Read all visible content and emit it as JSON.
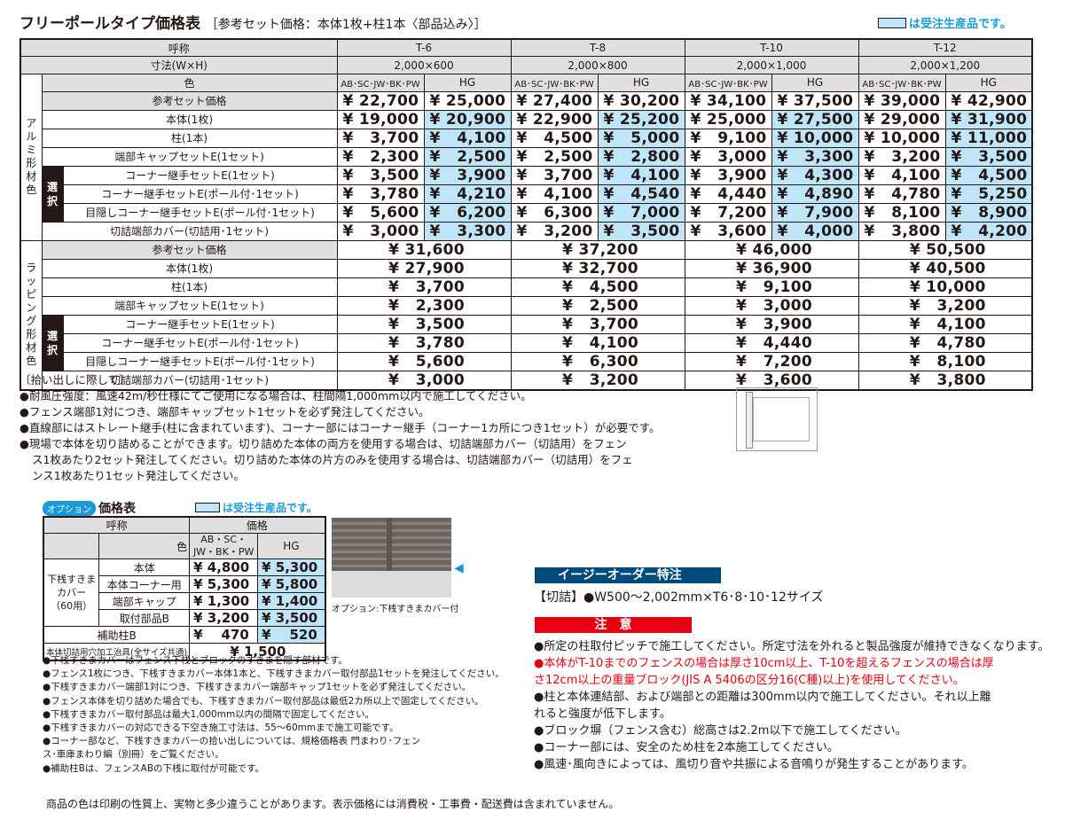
{
  "title": "フリーポールタイプ価格表",
  "subtitle": "［参考セット価格：本体1枚+柱1本〈部品込み〉］",
  "legend": "は受注生産品です。",
  "colors": {
    "made_to_order": "#bfe5f8",
    "header_bg": "#e0e0e0",
    "easy_order": "#004a7c",
    "caution": "#e60012",
    "option_badge": "#1a9ad6"
  },
  "table": {
    "h_name": "呼称",
    "h_size": "寸法(W×H)",
    "h_color": "色",
    "models": [
      "T-6",
      "T-8",
      "T-10",
      "T-12"
    ],
    "sizes": [
      "2,000×600",
      "2,000×800",
      "2,000×1,000",
      "2,000×1,200"
    ],
    "color_cols": [
      "AB･SC･JW･BK･PW",
      "HG"
    ],
    "group_alu": "アルミ形材色",
    "group_wrap": "ラッピング形材色",
    "select": "選択",
    "items": [
      "参考セット価格",
      "本体(1枚)",
      "柱(1本)",
      "端部キャップセットE(1セット)",
      "コーナー継手セットE(1セット)",
      "コーナー継手セットE(ポール付･1セット)",
      "目隠しコーナー継手セットE(ポール付･1セット)",
      "切詰端部カバー(切詰用･1セット)"
    ],
    "alu": [
      [
        "¥ 22,700",
        "¥ 25,000",
        "¥ 27,400",
        "¥ 30,200",
        "¥ 34,100",
        "¥ 37,500",
        "¥ 39,000",
        "¥ 42,900"
      ],
      [
        "¥ 19,000",
        "¥ 20,900",
        "¥ 22,900",
        "¥ 25,200",
        "¥ 25,000",
        "¥ 27,500",
        "¥ 29,000",
        "¥ 31,900"
      ],
      [
        "¥   3,700",
        "¥   4,100",
        "¥   4,500",
        "¥   5,000",
        "¥   9,100",
        "¥ 10,000",
        "¥ 10,000",
        "¥ 11,000"
      ],
      [
        "¥   2,300",
        "¥   2,500",
        "¥   2,500",
        "¥   2,800",
        "¥   3,000",
        "¥   3,300",
        "¥   3,200",
        "¥   3,500"
      ],
      [
        "¥   3,500",
        "¥   3,900",
        "¥   3,700",
        "¥   4,100",
        "¥   3,900",
        "¥   4,300",
        "¥   4,100",
        "¥   4,500"
      ],
      [
        "¥   3,780",
        "¥   4,210",
        "¥   4,100",
        "¥   4,540",
        "¥   4,440",
        "¥   4,890",
        "¥   4,780",
        "¥   5,250"
      ],
      [
        "¥   5,600",
        "¥   6,200",
        "¥   6,300",
        "¥   7,000",
        "¥   7,200",
        "¥   7,900",
        "¥   8,100",
        "¥   8,900"
      ],
      [
        "¥   3,000",
        "¥   3,300",
        "¥   3,200",
        "¥   3,500",
        "¥   3,600",
        "¥   4,000",
        "¥   3,800",
        "¥   4,200"
      ]
    ],
    "wrap": [
      [
        "¥ 31,600",
        "¥ 37,200",
        "¥ 46,000",
        "¥ 50,500"
      ],
      [
        "¥ 27,900",
        "¥ 32,700",
        "¥ 36,900",
        "¥ 40,500"
      ],
      [
        "¥   3,700",
        "¥   4,500",
        "¥   9,100",
        "¥ 10,000"
      ],
      [
        "¥   2,300",
        "¥   2,500",
        "¥   3,000",
        "¥   3,200"
      ],
      [
        "¥   3,500",
        "¥   3,700",
        "¥   3,900",
        "¥   4,100"
      ],
      [
        "¥   3,780",
        "¥   4,100",
        "¥   4,440",
        "¥   4,780"
      ],
      [
        "¥   5,600",
        "¥   6,300",
        "¥   7,200",
        "¥   8,100"
      ],
      [
        "¥   3,000",
        "¥   3,200",
        "¥   3,600",
        "¥   3,800"
      ]
    ]
  },
  "notes": {
    "heading": "〔拾い出しに際して〕",
    "items": [
      "●耐風圧強度：風速42m/秒仕様にてご使用になる場合は、柱間隔1,000mm以内で施工してください。",
      "●フェンス端部1対につき、端部キャップセット1セットを必ず発注してください。",
      "●直線部にはストレート継手(柱に含まれています)、コーナー部にはコーナー継手（コーナー1カ所につき1セット）が必要です。",
      "●現場で本体を切り詰めることができます。切り詰めた本体の両方を使用する場合は、切詰端部カバー（切詰用）をフェン",
      "ス1枚あたり2セット発注してください。切り詰めた本体の片方のみを使用する場合は、切詰端部カバー（切詰用）をフェ",
      "ンス1枚あたり1セット発注してください。"
    ]
  },
  "option": {
    "badge": "オプション",
    "title": "価格表",
    "legend": "は受注生産品です。",
    "h_name": "呼称",
    "h_price": "価格",
    "h_color": "色",
    "col1": "AB・SC・JW・BK・PW",
    "col2": "HG",
    "group": "下桟すきまカバー（60用）",
    "rows": [
      {
        "name": "本体",
        "p1": "¥ 4,800",
        "p2": "¥ 5,300"
      },
      {
        "name": "本体コーナー用",
        "p1": "¥ 5,300",
        "p2": "¥ 5,800"
      },
      {
        "name": "端部キャップ",
        "p1": "¥ 1,300",
        "p2": "¥ 1,400"
      },
      {
        "name": "取付部品B",
        "p1": "¥ 3,200",
        "p2": "¥ 3,500"
      }
    ],
    "aux": {
      "name": "補助柱B",
      "p1": "¥    470",
      "p2": "¥    520"
    },
    "jig": {
      "name": "本体切詰用穴加工治具(全サイズ共通)",
      "price": "¥ 1,500"
    },
    "photo_caption": "オプション:下桟すきまカバー付",
    "notes": [
      "●下桟すきまカバーはフェンス下桟とブロックのすきまを隠す部材です。",
      "●フェンス1枚につき、下桟すきまカバー本体1本と、下桟すきまカバー取付部品1セットを発注してください。",
      "●下桟すきまカバー端部1対につき、下桟すきまカバー端部キャップ1セットを必ず発注してください。",
      "●フェンス本体を切り詰めた場合でも、下桟すきまカバー取付部品は最低2カ所以上で固定してください。",
      "●下桟すきまカバー取付部品は最大1,000mm以内の間隔で固定してください。",
      "●下桟すきまカバーの対応できる下空き施工寸法は、55～60mmまで施工可能です。",
      "●コーナー部など、下桟すきまカバーの拾い出しについては、規格価格表 門まわり･フェン",
      "ス･車庫まわり編（別冊）をご覧ください。",
      "●補助柱Bは、フェンスABの下桟に取付が可能です。"
    ]
  },
  "easy_order": {
    "title": "イージーオーダー特注",
    "text": "【切詰】●W500～2,002mm×T6･8･10･12サイズ"
  },
  "caution": {
    "title": "注　意",
    "items": [
      "●所定の柱取付ピッチで施工してください。所定寸法を外れると製品強度が維持できなくなります。",
      "●本体がT-10までのフェンスの場合は厚さ10cm以上、T-10を超えるフェンスの場合は厚",
      "さ12cm以上の重量ブロック(JIS A 5406の区分16(C種)以上)を使用してください。",
      "●柱と本体連結部、および端部との距離は300mm以内で施工してください。それ以上離",
      "れると強度が低下します。",
      "●ブロック塀（フェンス含む）総高さは2.2m以下で施工してください。",
      "●コーナー部には、安全のため柱を2本施工してください。",
      "●風速･風向きによっては、風切り音や共振による音鳴りが発生することがあります。"
    ]
  },
  "footer": "商品の色は印刷の性質上、実物と多少違うことがあります。表示価格には消費税・工事費・配送費は含まれていません。"
}
